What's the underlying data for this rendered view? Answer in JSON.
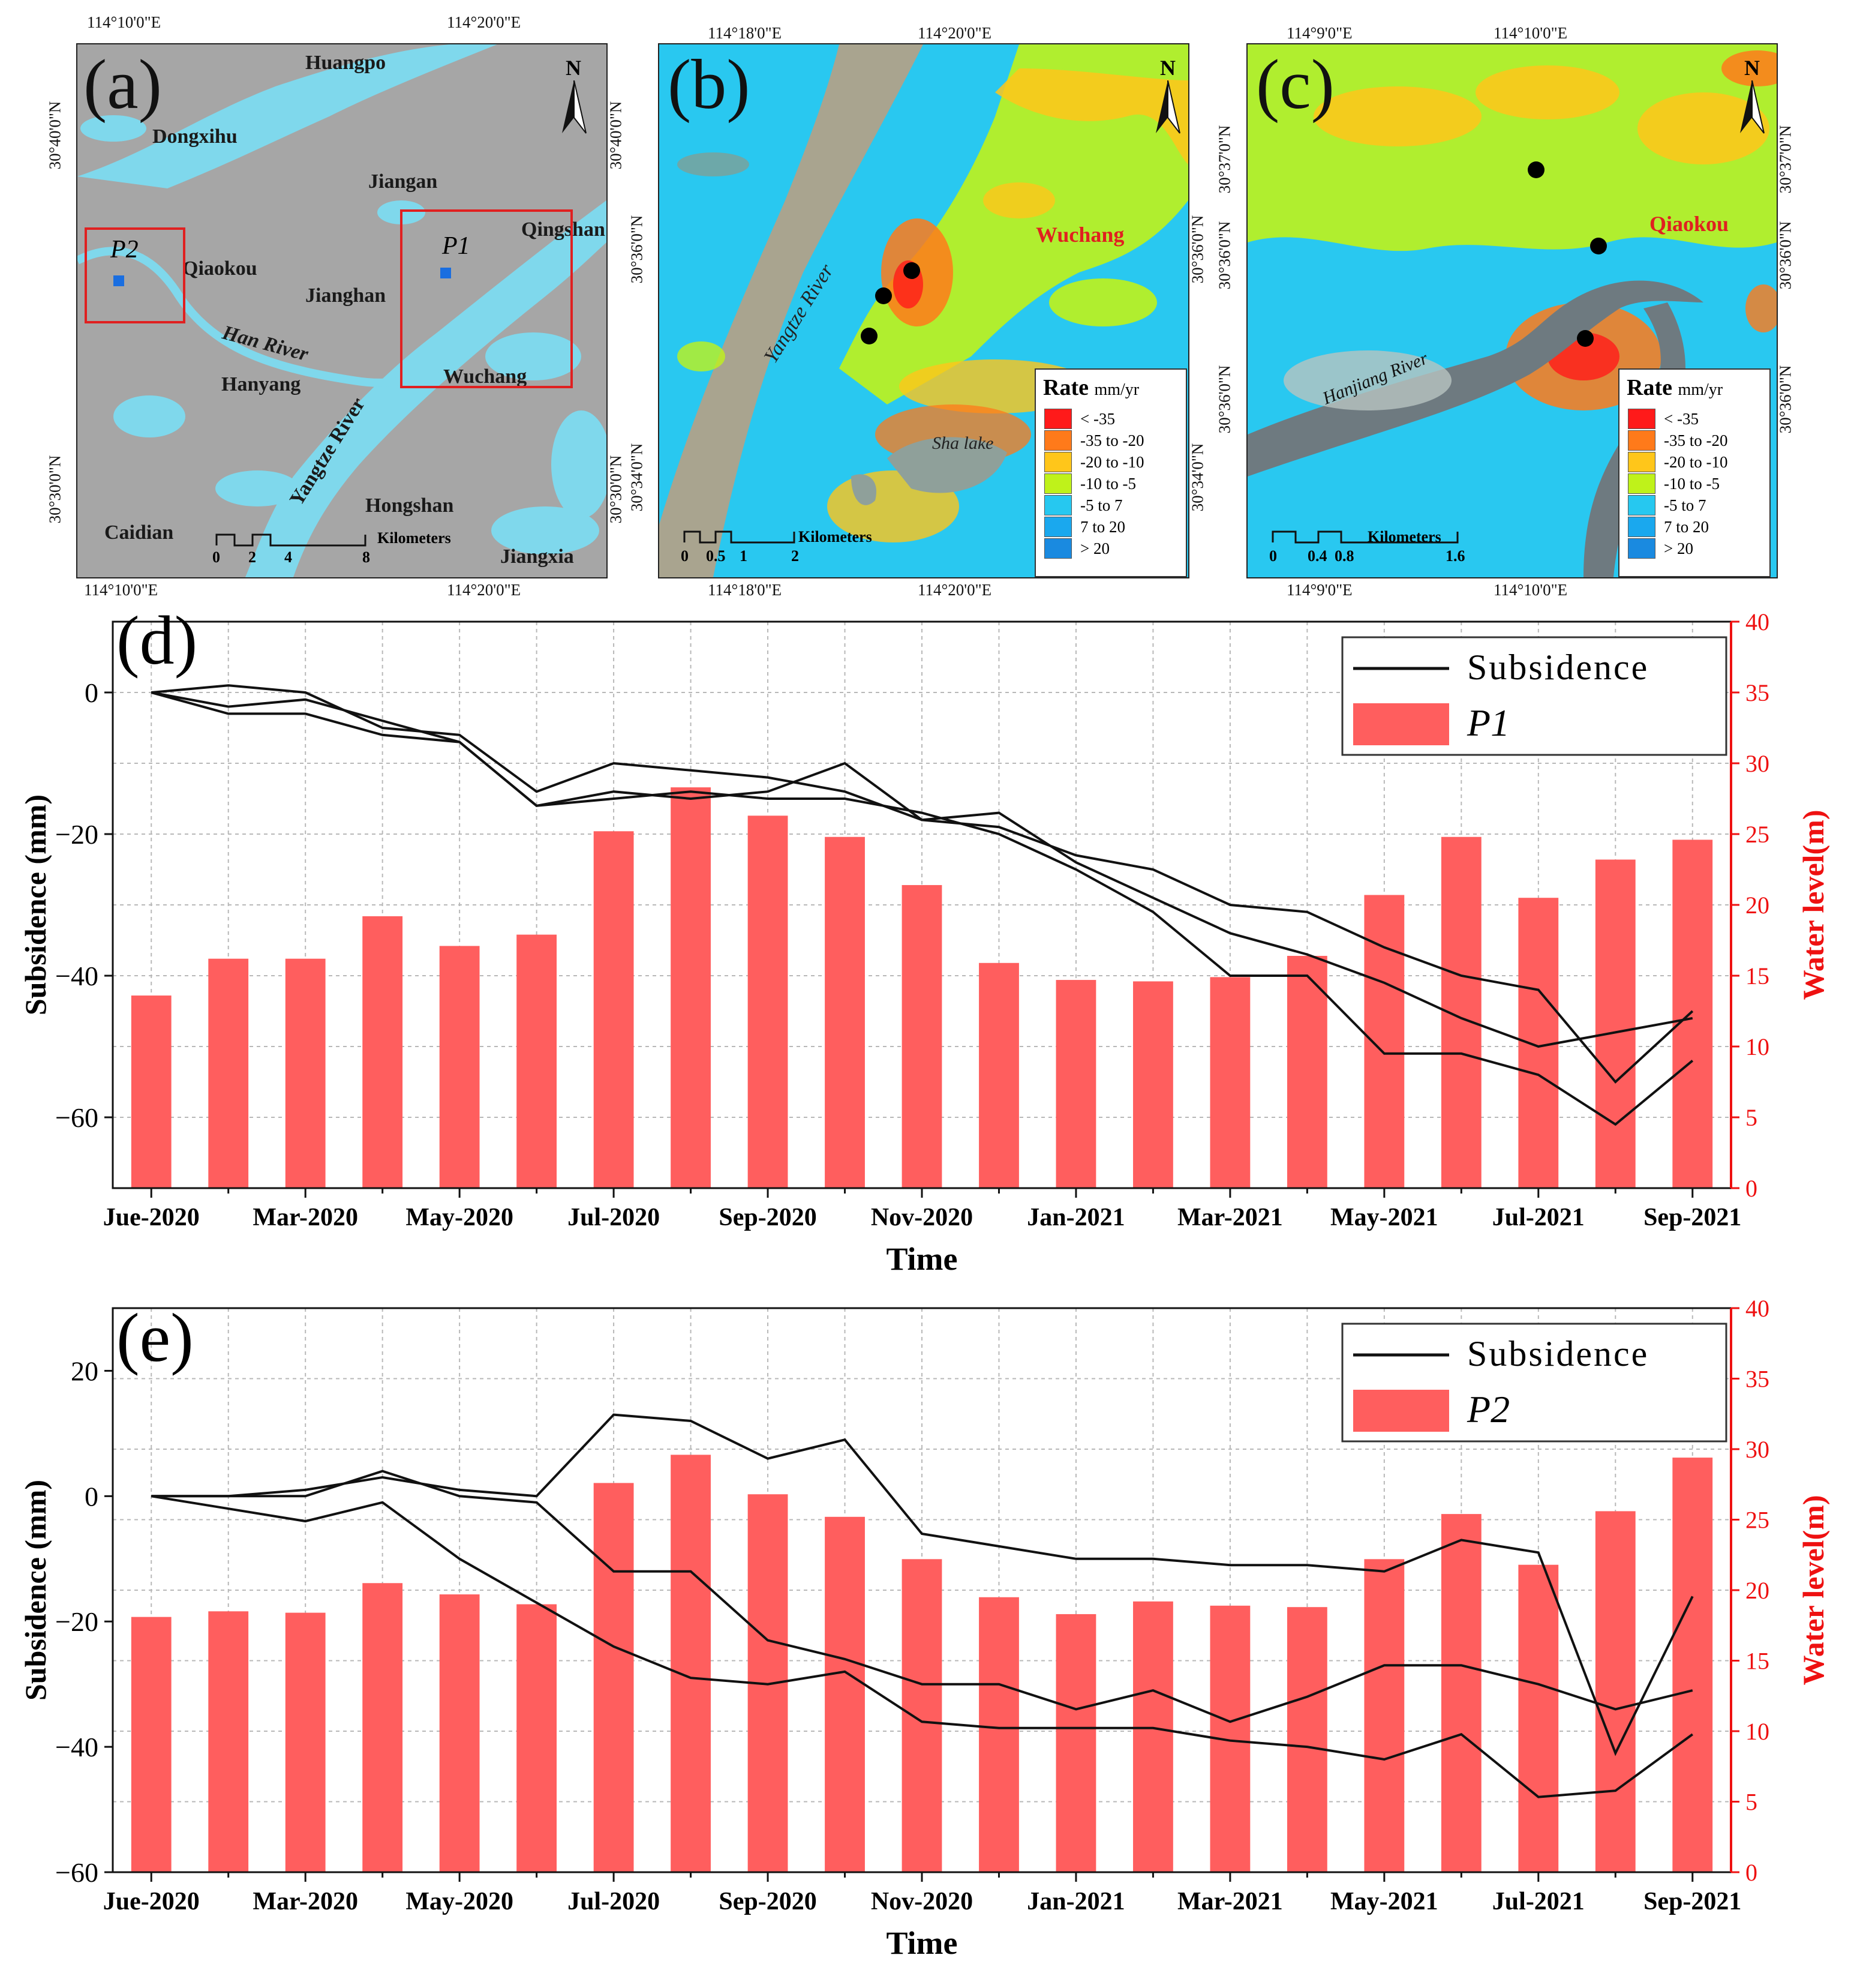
{
  "map_a": {
    "letter": "(a)",
    "top_coords": [
      "114°10'0\"E",
      "114°20'0\"E"
    ],
    "bottom_coords": [
      "114°10'0\"E",
      "114°20'0\"E"
    ],
    "left_coords": [
      "30°40'0\"N",
      "30°30'0\"N"
    ],
    "right_coords": [
      "30°40'0\"N",
      "30°30'0\"N"
    ],
    "places": {
      "huangpo": "Huangpo",
      "dongxihu": "Dongxihu",
      "jiangan": "Jiangan",
      "qiaokou": "Qiaokou",
      "jianghan": "Jianghan",
      "qingshan": "Qingshan",
      "han_river": "Han River",
      "hanyang": "Hanyang",
      "wuchang": "Wuchang",
      "yangtze": "Yangtze River",
      "hongshan": "Hongshan",
      "caidian": "Caidian",
      "jiangxia": "Jiangxia"
    },
    "points": [
      "P1",
      "P2"
    ],
    "scale": {
      "ticks": [
        "0",
        "2",
        "4",
        "8"
      ],
      "unit": "Kilometers"
    },
    "north": "N"
  },
  "map_b": {
    "letter": "(b)",
    "top_coords": [
      "114°18'0\"E",
      "114°20'0\"E"
    ],
    "bottom_coords": [
      "114°18'0\"E",
      "114°20'0\"E"
    ],
    "left_coords": [
      "30°36'0\"N",
      "30°34'0\"N"
    ],
    "right_coords": [
      "30°36'0\"N",
      "30°34'0\"N"
    ],
    "district": "Wuchang",
    "river": "Yangtze River",
    "lake": "Sha lake",
    "scale": {
      "ticks": [
        "0",
        "0.5",
        "1",
        "2"
      ],
      "unit": "Kilometers"
    },
    "north": "N"
  },
  "map_c": {
    "letter": "(c)",
    "top_coords": [
      "114°9'0\"E",
      "114°10'0\"E"
    ],
    "bottom_coords": [
      "114°9'0\"E",
      "114°10'0\"E"
    ],
    "left_coords": [
      "30°37'0\"N",
      "30°36'0\"N",
      "30°36'0\"N"
    ],
    "right_coords": [
      "30°37'0\"N",
      "30°36'0\"N",
      "30°36'0\"N"
    ],
    "district": "Qiaokou",
    "river": "Hanjiang River",
    "scale": {
      "ticks": [
        "0",
        "0.4",
        "0.8",
        "1.6"
      ],
      "unit": "Kilometers"
    },
    "north": "N"
  },
  "rate_legend": {
    "title": "Rate",
    "unit": "mm/yr",
    "classes": [
      {
        "label": "< -35",
        "color": "#ff1a1a"
      },
      {
        "label": "-35  to -20",
        "color": "#ff7a1a"
      },
      {
        "label": "-20  to -10",
        "color": "#ffc61a"
      },
      {
        "label": "-10  to -5",
        "color": "#bff21a"
      },
      {
        "label": "-5  to 7",
        "color": "#26c8f0"
      },
      {
        "label": "7  to 20",
        "color": "#1aa8ee"
      },
      {
        "label": "> 20",
        "color": "#1a8ae0"
      }
    ]
  },
  "colors": {
    "bar": "#ff5e5e",
    "line": "#111111",
    "right_axis": "#ee1111",
    "water": "#7fd8ec",
    "land_a": "#a8a8a8"
  },
  "chart_data": [
    {
      "panel": "(d)",
      "type": "bar+line",
      "categories": [
        "Jue-2020",
        "",
        "Mar-2020",
        "",
        "May-2020",
        "",
        "Jul-2020",
        "",
        "Sep-2020",
        "",
        "Nov-2020",
        "",
        "Jan-2021",
        "",
        "Mar-2021",
        "",
        "May-2021",
        "",
        "Jul-2021",
        "",
        "Sep-2021"
      ],
      "tick_labels": [
        "Jue-2020",
        "Mar-2020",
        "May-2020",
        "Jul-2020",
        "Sep-2020",
        "Nov-2020",
        "Jan-2021",
        "Mar-2021",
        "May-2021",
        "Jul-2021",
        "Sep-2021"
      ],
      "xlabel": "Time",
      "ylabel": "Subsidence (mm)",
      "y2label": "Water level(m)",
      "ylim": [
        -70,
        10
      ],
      "y2lim": [
        0,
        40
      ],
      "yticks": [
        0,
        -20,
        -40,
        -60
      ],
      "y2ticks": [
        0,
        5,
        10,
        15,
        20,
        25,
        30,
        35,
        40
      ],
      "legend": {
        "line": "Subsidence",
        "bar": "P1",
        "position": "top-right"
      },
      "water_level": [
        13.6,
        16.2,
        16.2,
        19.2,
        17.1,
        17.9,
        25.2,
        28.3,
        26.3,
        24.8,
        21.4,
        15.9,
        14.7,
        14.6,
        14.9,
        16.4,
        20.7,
        24.8,
        20.5,
        23.2,
        24.6
      ],
      "series": [
        {
          "name": "Subsidence 1",
          "values": [
            0,
            1,
            0,
            -5,
            -6,
            -14,
            -10,
            -11,
            -12,
            -14,
            -18,
            -19,
            -23,
            -25,
            -30,
            -31,
            -36,
            -40,
            -42,
            -55,
            -45
          ]
        },
        {
          "name": "Subsidence 2",
          "values": [
            0,
            -2,
            -1,
            -4,
            -7,
            -16,
            -14,
            -15,
            -14,
            -10,
            -18,
            -17,
            -24,
            -29,
            -34,
            -37,
            -41,
            -46,
            -50,
            -48,
            -46
          ]
        },
        {
          "name": "Subsidence 3",
          "values": [
            0,
            -3,
            -3,
            -6,
            -7,
            -16,
            -15,
            -14,
            -15,
            -15,
            -17,
            -20,
            -25,
            -31,
            -40,
            -40,
            -51,
            -51,
            -54,
            -61,
            -52
          ]
        }
      ]
    },
    {
      "panel": "(e)",
      "type": "bar+line",
      "categories": [
        "Jue-2020",
        "",
        "Mar-2020",
        "",
        "May-2020",
        "",
        "Jul-2020",
        "",
        "Sep-2020",
        "",
        "Nov-2020",
        "",
        "Jan-2021",
        "",
        "Mar-2021",
        "",
        "May-2021",
        "",
        "Jul-2021",
        "",
        "Sep-2021"
      ],
      "tick_labels": [
        "Jue-2020",
        "Mar-2020",
        "May-2020",
        "Jul-2020",
        "Sep-2020",
        "Nov-2020",
        "Jan-2021",
        "Mar-2021",
        "May-2021",
        "Jul-2021",
        "Sep-2021"
      ],
      "xlabel": "Time",
      "ylabel": "Subsidence (mm)",
      "y2label": "Water level(m)",
      "ylim": [
        -60,
        30
      ],
      "y2lim": [
        0,
        40
      ],
      "yticks": [
        20,
        0,
        -20,
        -40,
        -60
      ],
      "y2ticks": [
        0,
        5,
        10,
        15,
        20,
        25,
        30,
        35,
        40
      ],
      "legend": {
        "line": "Subsidence",
        "bar": "P2",
        "position": "top-right"
      },
      "water_level": [
        18.1,
        18.5,
        18.4,
        20.5,
        19.7,
        19.0,
        27.6,
        29.6,
        26.8,
        25.2,
        22.2,
        19.5,
        18.3,
        19.2,
        18.9,
        18.8,
        22.2,
        25.4,
        21.8,
        25.6,
        29.4
      ],
      "series": [
        {
          "name": "Subsidence 1",
          "values": [
            0,
            0,
            1,
            3,
            1,
            0,
            13,
            12,
            6,
            9,
            -6,
            -8,
            -10,
            -10,
            -11,
            -11,
            -12,
            -7,
            -9,
            -41,
            -16
          ]
        },
        {
          "name": "Subsidence 2",
          "values": [
            0,
            0,
            0,
            4,
            0,
            -1,
            -12,
            -12,
            -23,
            -26,
            -30,
            -30,
            -34,
            -31,
            -36,
            -32,
            -27,
            -27,
            -30,
            -34,
            -31
          ]
        },
        {
          "name": "Subsidence 3",
          "values": [
            0,
            -2,
            -4,
            -1,
            -10,
            -17,
            -24,
            -29,
            -30,
            -28,
            -36,
            -37,
            -37,
            -37,
            -39,
            -40,
            -42,
            -38,
            -48,
            -47,
            -38
          ]
        }
      ]
    }
  ]
}
